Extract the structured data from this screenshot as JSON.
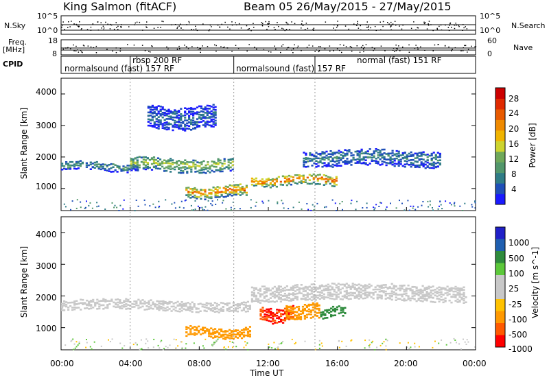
{
  "header": {
    "station": "King Salmon (fitACF)",
    "beam_dates": "Beam 05  26/May/2015 - 27/May/2015"
  },
  "strip_panels": {
    "nsky_label": "N.Sky",
    "nsky_ticks": [
      "10^5",
      "10^0"
    ],
    "nsearch_label": "N.Search",
    "nsearch_ticks": [
      "10^5",
      "10^0"
    ],
    "freq_label_1": "Freq.",
    "freq_label_2": "[MHz]",
    "freq_ticks": [
      "18",
      "8"
    ],
    "nave_label": "Nave",
    "nave_ticks": [
      "60",
      "0"
    ],
    "cpid_label": "CPID"
  },
  "cpid_modes": [
    {
      "text": "normalsound (fast) 157 RF",
      "start_h": 0.0
    },
    {
      "text": "rbsp 200 RF",
      "start_h": 4.0
    },
    {
      "text": "normalsound (fast) 157 RF",
      "start_h": 10.0
    },
    {
      "text": "normal (fast) 151 RF",
      "start_h": 14.7
    }
  ],
  "colors": {
    "power_scale": [
      "#1a1aff",
      "#1f4fb8",
      "#2f7c86",
      "#52976b",
      "#6fa85a",
      "#cdd42f",
      "#f0b400",
      "#ef8a00",
      "#e85a00",
      "#e02a00",
      "#cc0000"
    ],
    "velocity_scale": [
      "#ff0000",
      "#ff5a00",
      "#ff9900",
      "#ffc200",
      "#c8c8c8",
      "#c8c8c8",
      "#5cc83a",
      "#2e8b3c",
      "#1f5fb0",
      "#2020c8"
    ]
  },
  "chart_data": [
    {
      "type": "heatmap",
      "title": "Power",
      "xlabel": "",
      "ylabel": "Slant Range [km]",
      "x_range_hours": [
        0,
        24
      ],
      "ylim": [
        300,
        4500
      ],
      "yticks": [
        1000,
        2000,
        3000,
        4000
      ],
      "colorbar": {
        "label": "Power [dB]",
        "ticks": [
          4,
          8,
          12,
          16,
          20,
          24,
          28
        ],
        "range": [
          0,
          32
        ]
      },
      "features": [
        {
          "start_h": 0.0,
          "end_h": 4.5,
          "range_km": 1750,
          "width_km": 250,
          "power_db": 10
        },
        {
          "start_h": 4.0,
          "end_h": 10.0,
          "range_km": 1800,
          "width_km": 400,
          "power_db": 16
        },
        {
          "start_h": 5.0,
          "end_h": 9.0,
          "range_km": 3300,
          "width_km": 700,
          "power_db": 6
        },
        {
          "start_h": 7.2,
          "end_h": 10.8,
          "range_km": 950,
          "width_km": 350,
          "power_db": 24
        },
        {
          "start_h": 11.0,
          "end_h": 16.0,
          "range_km": 1300,
          "width_km": 300,
          "power_db": 26
        },
        {
          "start_h": 14.0,
          "end_h": 22.0,
          "range_km": 2000,
          "width_km": 500,
          "power_db": 8
        }
      ]
    },
    {
      "type": "heatmap",
      "title": "Velocity",
      "xlabel": "Time UT",
      "ylabel": "Slant Range [km]",
      "x_range_hours": [
        0,
        24
      ],
      "xticks": [
        "00:00",
        "04:00",
        "08:00",
        "12:00",
        "16:00",
        "20:00",
        "00:00"
      ],
      "ylim": [
        300,
        4500
      ],
      "yticks": [
        1000,
        2000,
        3000,
        4000
      ],
      "colorbar": {
        "label": "Velocity [m s^-1]",
        "ticks": [
          1000,
          500,
          100,
          25,
          -25,
          -100,
          -500,
          -1000
        ]
      },
      "features": [
        {
          "start_h": 0.0,
          "end_h": 11.0,
          "range_km": 1750,
          "width_km": 300,
          "velocity_ms": 0
        },
        {
          "start_h": 7.2,
          "end_h": 11.0,
          "range_km": 900,
          "width_km": 300,
          "velocity_ms": -200
        },
        {
          "start_h": 11.5,
          "end_h": 13.5,
          "range_km": 1450,
          "width_km": 450,
          "velocity_ms": -800
        },
        {
          "start_h": 13.0,
          "end_h": 15.0,
          "range_km": 1550,
          "width_km": 450,
          "velocity_ms": -300
        },
        {
          "start_h": 15.0,
          "end_h": 16.5,
          "range_km": 1550,
          "width_km": 300,
          "velocity_ms": 200
        },
        {
          "start_h": 11.0,
          "end_h": 23.5,
          "range_km": 2150,
          "width_km": 500,
          "velocity_ms": 0
        }
      ]
    }
  ]
}
